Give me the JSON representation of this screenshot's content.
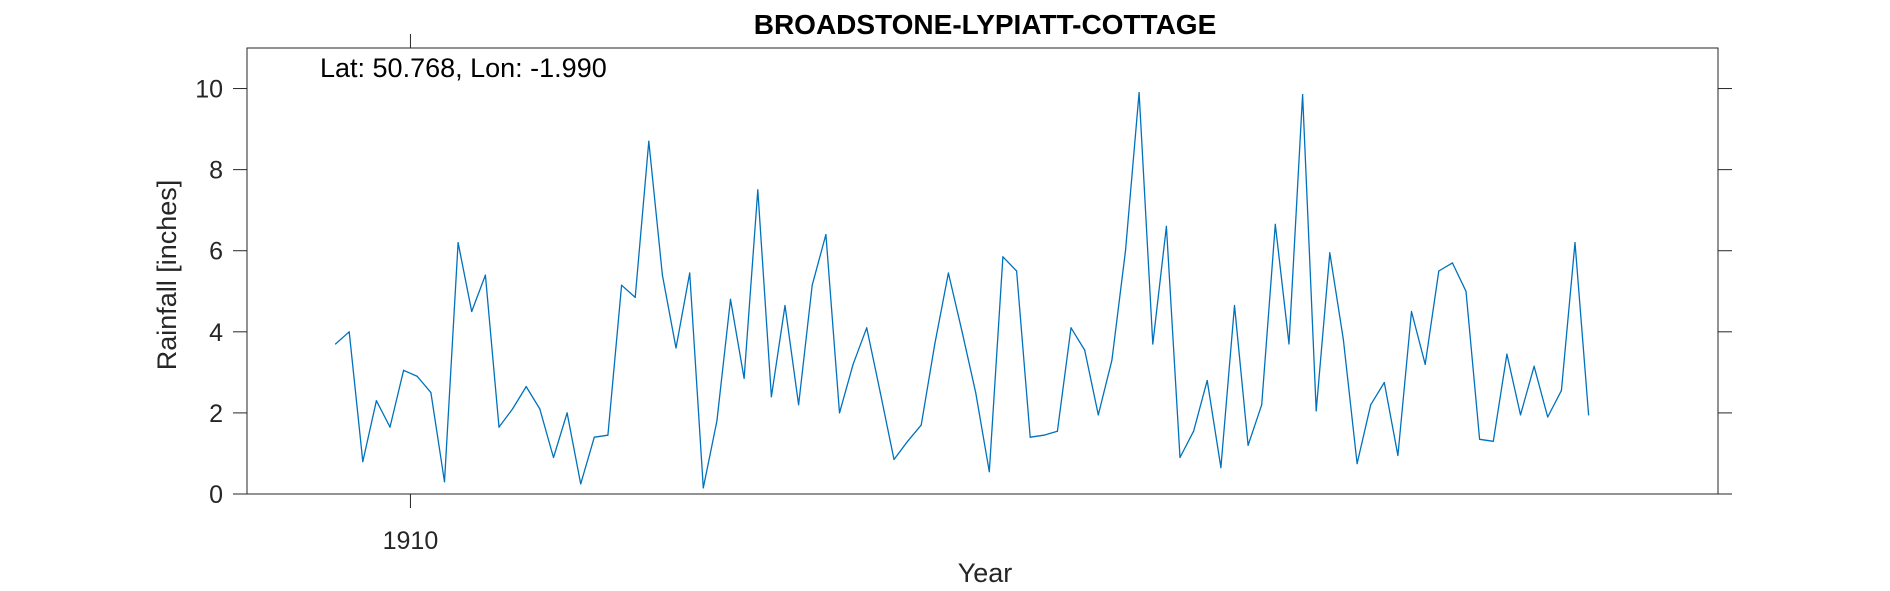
{
  "chart_data": {
    "type": "line",
    "title": "BROADSTONE-LYPIATT-COTTAGE",
    "annotation": "Lat: 50.768, Lon: -1.990",
    "xlabel": "Year",
    "ylabel": "Rainfall [inches]",
    "xlim": [
      1904,
      1958
    ],
    "ylim": [
      0,
      11
    ],
    "xticks": [
      1910
    ],
    "yticks": [
      0,
      2,
      4,
      6,
      8,
      10
    ],
    "grid": false,
    "line_color": "#0072BD",
    "series": [
      {
        "x": [
          1907.25,
          1907.75,
          1908.25,
          1908.75,
          1909.25,
          1909.75,
          1910.25,
          1910.75,
          1911.25,
          1911.75,
          1912.25,
          1912.75,
          1913.25,
          1913.75,
          1914.25,
          1914.75,
          1915.25,
          1915.75,
          1916.25,
          1916.75,
          1917.25,
          1917.75,
          1918.25,
          1918.75,
          1919.25,
          1919.75,
          1920.25,
          1920.75,
          1921.25,
          1921.75,
          1922.25,
          1922.75,
          1923.25,
          1923.75,
          1924.25,
          1924.75,
          1925.25,
          1925.75,
          1926.25,
          1926.75,
          1927.25,
          1927.75,
          1928.25,
          1928.75,
          1929.25,
          1929.75,
          1930.25,
          1930.75,
          1931.25,
          1931.75,
          1932.25,
          1932.75,
          1933.25,
          1933.75,
          1934.25,
          1934.75,
          1935.25,
          1935.75,
          1936.25,
          1936.75,
          1937.25,
          1937.75,
          1938.25,
          1938.75,
          1939.25,
          1939.75,
          1940.25,
          1940.75,
          1941.25,
          1941.75,
          1942.25,
          1942.75,
          1943.25,
          1943.75,
          1944.25,
          1944.75,
          1945.25,
          1945.75,
          1946.25,
          1946.75,
          1947.25,
          1947.75,
          1948.25,
          1948.75,
          1949.25,
          1949.75,
          1950.25,
          1950.75,
          1951.25,
          1951.75,
          1952.25,
          1952.75,
          1953.25
        ],
        "y": [
          3.7,
          4.0,
          0.8,
          2.3,
          1.65,
          3.05,
          2.9,
          2.5,
          0.3,
          6.2,
          4.5,
          5.4,
          1.65,
          2.1,
          2.65,
          2.1,
          0.9,
          2.0,
          0.25,
          1.4,
          1.45,
          5.15,
          4.85,
          8.7,
          5.4,
          3.6,
          5.45,
          0.15,
          1.8,
          4.8,
          2.85,
          7.5,
          2.4,
          4.65,
          2.2,
          5.15,
          6.4,
          2.0,
          3.2,
          4.1,
          2.5,
          0.85,
          1.3,
          1.7,
          3.7,
          5.45,
          4.0,
          2.5,
          0.55,
          5.85,
          5.5,
          1.4,
          1.45,
          1.55,
          4.1,
          3.55,
          1.95,
          3.3,
          6.0,
          9.9,
          3.7,
          6.6,
          0.9,
          1.55,
          2.8,
          0.65,
          4.65,
          1.2,
          2.2,
          6.65,
          3.7,
          9.85,
          2.05,
          5.95,
          3.8,
          0.75,
          2.2,
          2.75,
          0.95,
          4.5,
          3.2,
          5.5,
          5.7,
          5.0,
          1.35,
          1.3,
          3.45,
          1.95,
          3.15,
          1.9,
          2.55,
          6.2,
          1.95
        ]
      }
    ]
  }
}
